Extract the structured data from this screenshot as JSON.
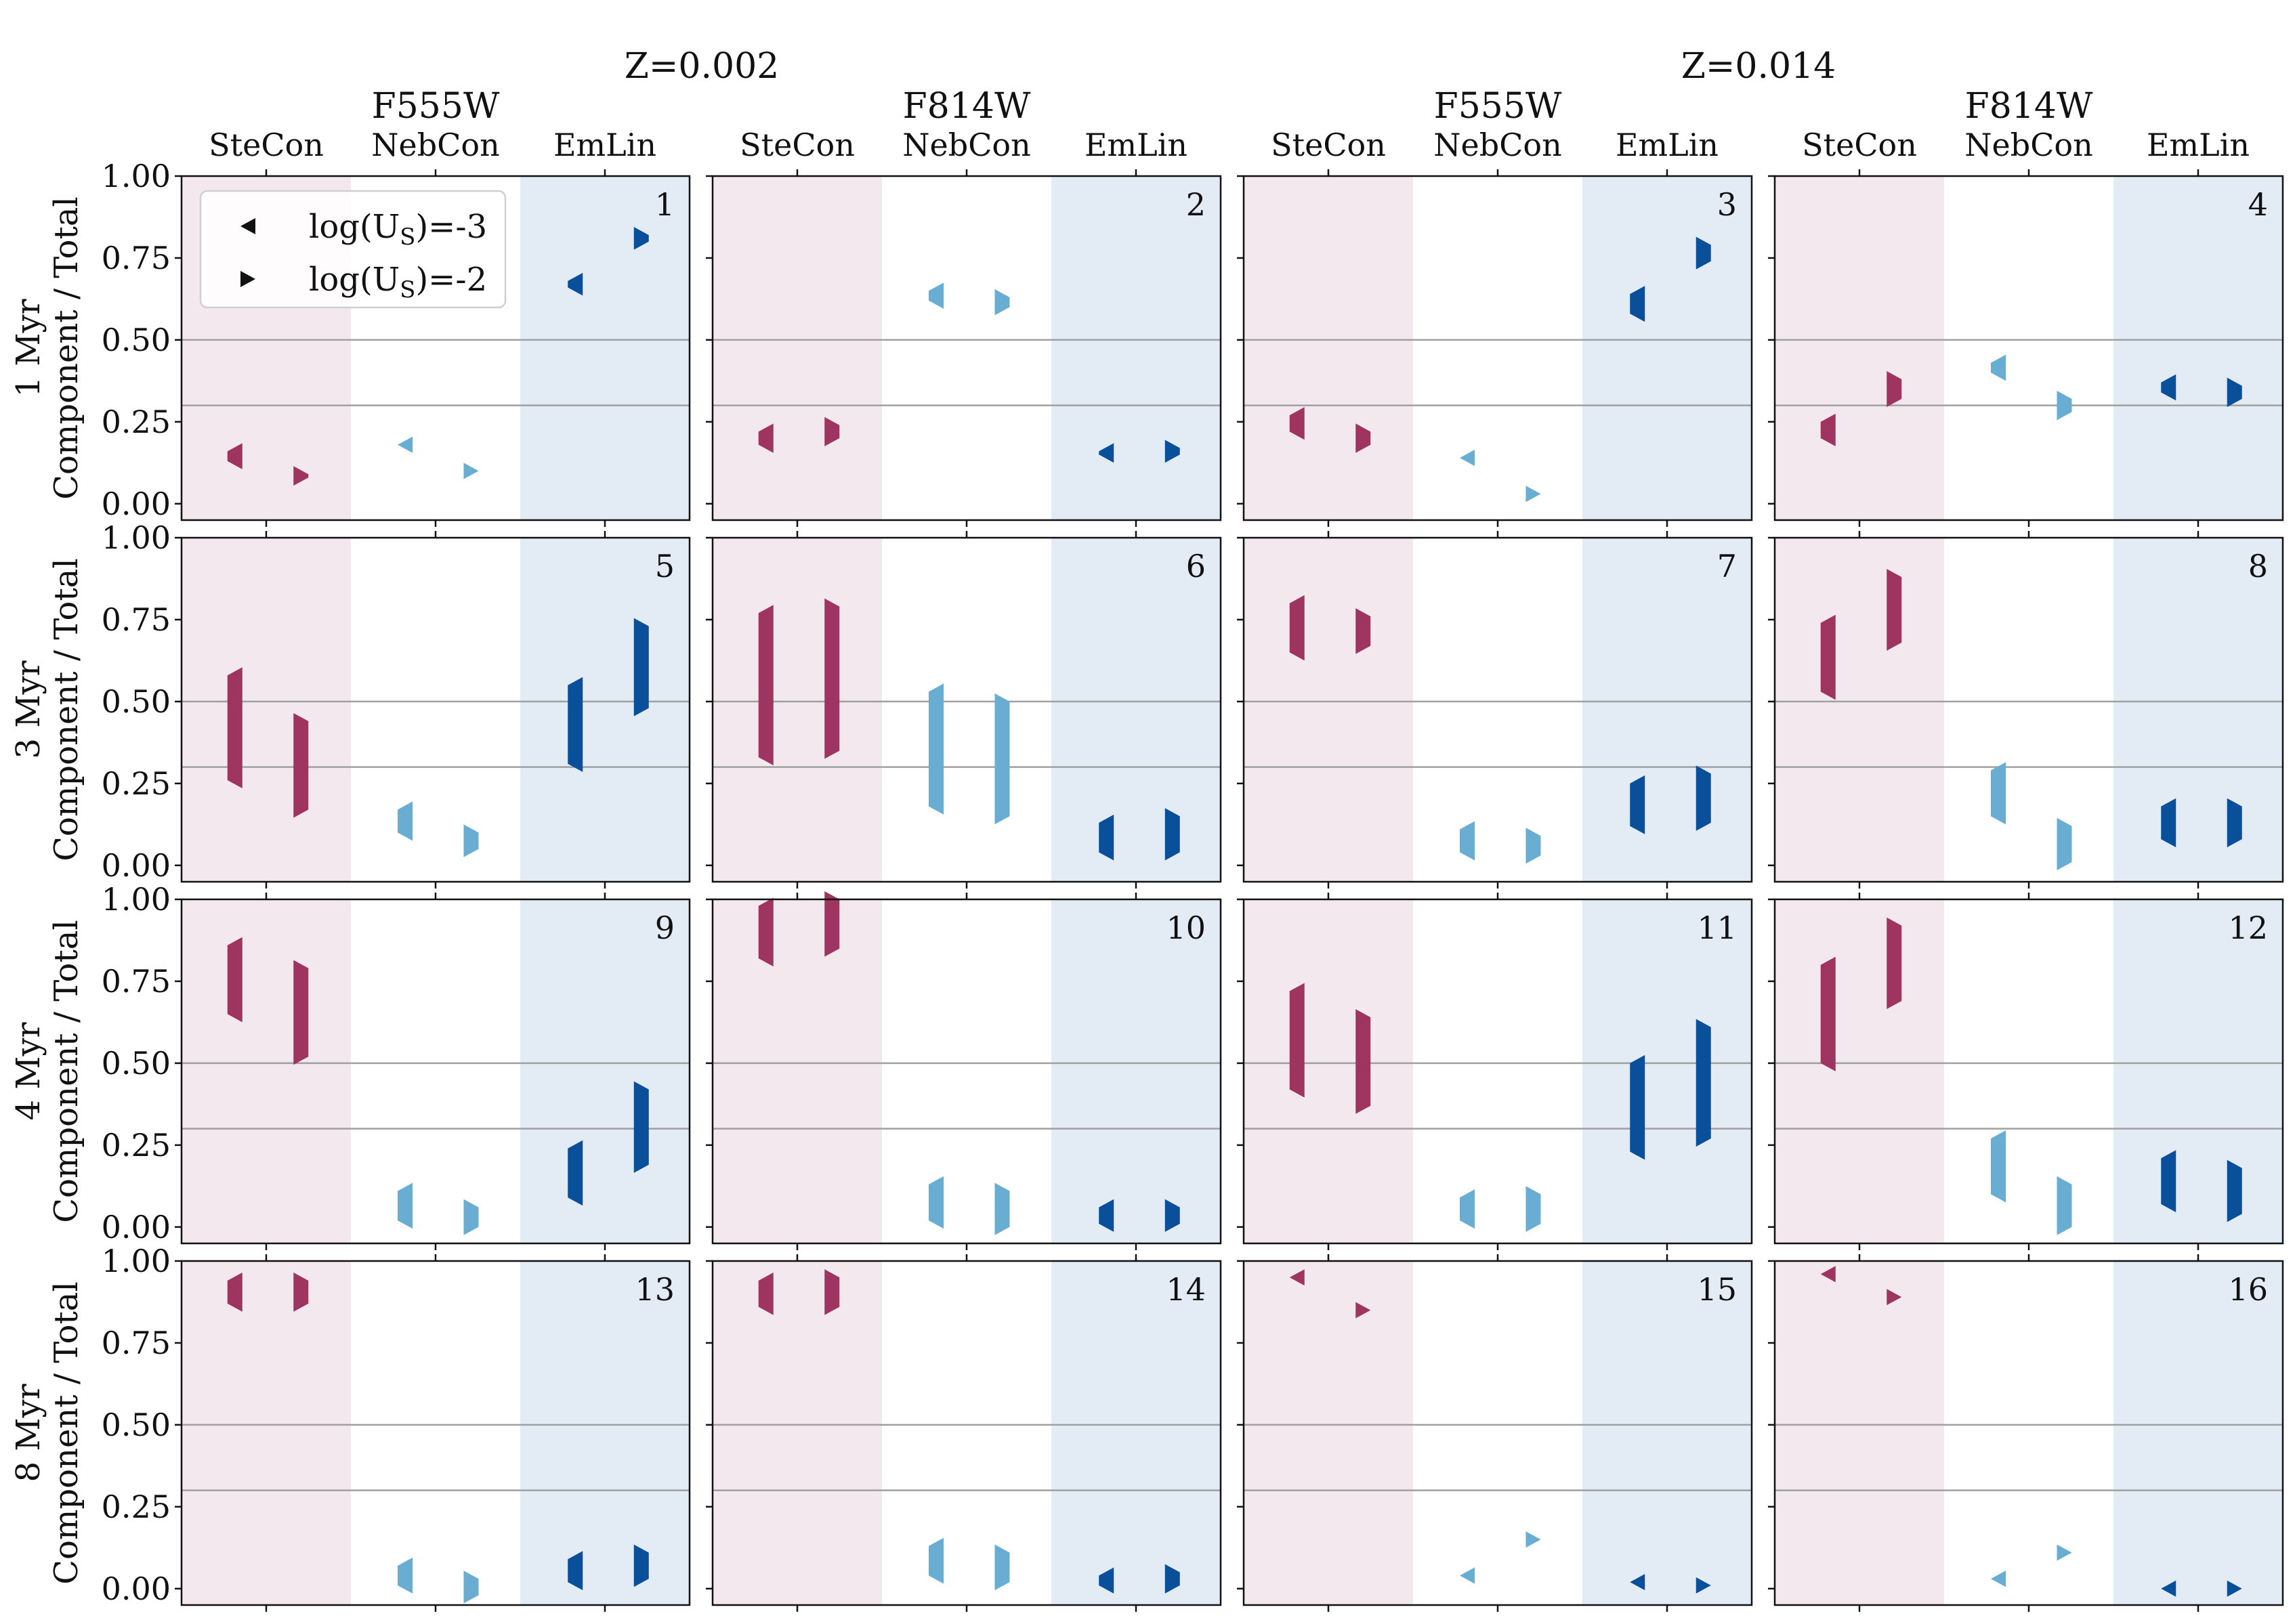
{
  "figure": {
    "metallicities": [
      "Z=0.002",
      "Z=0.014"
    ],
    "filters": [
      "F555W",
      "F814W",
      "F555W",
      "F814W"
    ],
    "components": [
      "SteCon",
      "NebCon",
      "EmLin"
    ],
    "ages": [
      "1 Myr",
      "3 Myr",
      "4 Myr",
      "8 Myr"
    ],
    "ylabel": "Component / Total",
    "yticks": [
      "1.00",
      "0.75",
      "0.50",
      "0.25",
      "0.00"
    ],
    "legend": [
      {
        "marker": "left-triangle",
        "label_main": "log(U",
        "label_sub": "S",
        "label_tail": ")=-3"
      },
      {
        "marker": "right-triangle",
        "label_main": "log(U",
        "label_sub": "S",
        "label_tail": ")=-2"
      }
    ],
    "colors": {
      "SteCon": "#9e3560",
      "NebCon": "#6aadd3",
      "EmLin": "#0a4f99",
      "SteCon_bg": "#f3e8ed",
      "EmLin_bg": "#e3ebf4",
      "hline": "#a0a0a0"
    }
  },
  "chart_data": {
    "type": "scatter",
    "title": "",
    "xlabel": "",
    "ylabel": "Component / Total",
    "ylim": [
      -0.05,
      1.0
    ],
    "reference_lines": [
      0.3,
      0.5
    ],
    "x_groups": [
      "SteCon",
      "NebCon",
      "EmLin"
    ],
    "series_markers": {
      "log(U_S)=-3": "left-triangle",
      "log(U_S)=-2": "right-triangle"
    },
    "panels": [
      {
        "id": "1",
        "age": "1 Myr",
        "Z": "Z=0.002",
        "filter": "F555W",
        "SteCon": [
          [
            0.13,
            0.16
          ],
          [
            0.08,
            0.09
          ]
        ],
        "NebCon": [
          [
            0.18,
            0.18
          ],
          [
            0.1,
            0.1
          ]
        ],
        "EmLin": [
          [
            0.66,
            0.68
          ],
          [
            0.8,
            0.82
          ]
        ]
      },
      {
        "id": "2",
        "age": "1 Myr",
        "Z": "Z=0.002",
        "filter": "F814W",
        "SteCon": [
          [
            0.18,
            0.22
          ],
          [
            0.2,
            0.24
          ]
        ],
        "NebCon": [
          [
            0.62,
            0.65
          ],
          [
            0.6,
            0.63
          ]
        ],
        "EmLin": [
          [
            0.15,
            0.16
          ],
          [
            0.15,
            0.17
          ]
        ]
      },
      {
        "id": "3",
        "age": "1 Myr",
        "Z": "Z=0.014",
        "filter": "F555W",
        "SteCon": [
          [
            0.22,
            0.27
          ],
          [
            0.18,
            0.22
          ]
        ],
        "NebCon": [
          [
            0.14,
            0.14
          ],
          [
            0.03,
            0.03
          ]
        ],
        "EmLin": [
          [
            0.58,
            0.64
          ],
          [
            0.74,
            0.79
          ]
        ]
      },
      {
        "id": "4",
        "age": "1 Myr",
        "Z": "Z=0.014",
        "filter": "F814W",
        "SteCon": [
          [
            0.2,
            0.25
          ],
          [
            0.32,
            0.38
          ]
        ],
        "NebCon": [
          [
            0.4,
            0.43
          ],
          [
            0.28,
            0.32
          ]
        ],
        "EmLin": [
          [
            0.34,
            0.37
          ],
          [
            0.32,
            0.36
          ]
        ]
      },
      {
        "id": "5",
        "age": "3 Myr",
        "Z": "Z=0.002",
        "filter": "F555W",
        "SteCon": [
          [
            0.26,
            0.58
          ],
          [
            0.17,
            0.44
          ]
        ],
        "NebCon": [
          [
            0.1,
            0.17
          ],
          [
            0.05,
            0.1
          ]
        ],
        "EmLin": [
          [
            0.31,
            0.55
          ],
          [
            0.48,
            0.73
          ]
        ]
      },
      {
        "id": "6",
        "age": "3 Myr",
        "Z": "Z=0.002",
        "filter": "F814W",
        "SteCon": [
          [
            0.33,
            0.77
          ],
          [
            0.35,
            0.79
          ]
        ],
        "NebCon": [
          [
            0.18,
            0.53
          ],
          [
            0.15,
            0.5
          ]
        ],
        "EmLin": [
          [
            0.04,
            0.13
          ],
          [
            0.04,
            0.15
          ]
        ]
      },
      {
        "id": "7",
        "age": "3 Myr",
        "Z": "Z=0.014",
        "filter": "F555W",
        "SteCon": [
          [
            0.65,
            0.8
          ],
          [
            0.67,
            0.76
          ]
        ],
        "NebCon": [
          [
            0.04,
            0.11
          ],
          [
            0.03,
            0.09
          ]
        ],
        "EmLin": [
          [
            0.12,
            0.25
          ],
          [
            0.13,
            0.28
          ]
        ]
      },
      {
        "id": "8",
        "age": "3 Myr",
        "Z": "Z=0.014",
        "filter": "F814W",
        "SteCon": [
          [
            0.53,
            0.74
          ],
          [
            0.68,
            0.88
          ]
        ],
        "NebCon": [
          [
            0.15,
            0.29
          ],
          [
            0.01,
            0.12
          ]
        ],
        "EmLin": [
          [
            0.08,
            0.18
          ],
          [
            0.08,
            0.18
          ]
        ]
      },
      {
        "id": "9",
        "age": "4 Myr",
        "Z": "Z=0.002",
        "filter": "F555W",
        "SteCon": [
          [
            0.65,
            0.86
          ],
          [
            0.52,
            0.79
          ]
        ],
        "NebCon": [
          [
            0.02,
            0.11
          ],
          [
            0.0,
            0.06
          ]
        ],
        "EmLin": [
          [
            0.09,
            0.24
          ],
          [
            0.19,
            0.42
          ]
        ]
      },
      {
        "id": "10",
        "age": "4 Myr",
        "Z": "Z=0.002",
        "filter": "F814W",
        "SteCon": [
          [
            0.82,
            0.98
          ],
          [
            0.85,
            1.0
          ]
        ],
        "NebCon": [
          [
            0.02,
            0.13
          ],
          [
            0.0,
            0.11
          ]
        ],
        "EmLin": [
          [
            0.01,
            0.06
          ],
          [
            0.01,
            0.06
          ]
        ]
      },
      {
        "id": "11",
        "age": "4 Myr",
        "Z": "Z=0.014",
        "filter": "F555W",
        "SteCon": [
          [
            0.42,
            0.72
          ],
          [
            0.37,
            0.64
          ]
        ],
        "NebCon": [
          [
            0.02,
            0.09
          ],
          [
            0.01,
            0.1
          ]
        ],
        "EmLin": [
          [
            0.23,
            0.5
          ],
          [
            0.27,
            0.61
          ]
        ]
      },
      {
        "id": "12",
        "age": "4 Myr",
        "Z": "Z=0.014",
        "filter": "F814W",
        "SteCon": [
          [
            0.5,
            0.8
          ],
          [
            0.69,
            0.92
          ]
        ],
        "NebCon": [
          [
            0.1,
            0.27
          ],
          [
            0.0,
            0.13
          ]
        ],
        "EmLin": [
          [
            0.07,
            0.21
          ],
          [
            0.04,
            0.18
          ]
        ]
      },
      {
        "id": "13",
        "age": "8 Myr",
        "Z": "Z=0.002",
        "filter": "F555W",
        "SteCon": [
          [
            0.87,
            0.94
          ],
          [
            0.87,
            0.94
          ]
        ],
        "NebCon": [
          [
            0.01,
            0.07
          ],
          [
            -0.02,
            0.03
          ]
        ],
        "EmLin": [
          [
            0.02,
            0.09
          ],
          [
            0.03,
            0.11
          ]
        ]
      },
      {
        "id": "14",
        "age": "8 Myr",
        "Z": "Z=0.002",
        "filter": "F814W",
        "SteCon": [
          [
            0.86,
            0.94
          ],
          [
            0.86,
            0.95
          ]
        ],
        "NebCon": [
          [
            0.04,
            0.13
          ],
          [
            0.02,
            0.11
          ]
        ],
        "EmLin": [
          [
            0.01,
            0.04
          ],
          [
            0.01,
            0.05
          ]
        ]
      },
      {
        "id": "15",
        "age": "8 Myr",
        "Z": "Z=0.014",
        "filter": "F555W",
        "SteCon": [
          [
            0.95,
            0.95
          ],
          [
            0.85,
            0.85
          ]
        ],
        "NebCon": [
          [
            0.04,
            0.04
          ],
          [
            0.15,
            0.15
          ]
        ],
        "EmLin": [
          [
            0.02,
            0.02
          ],
          [
            0.01,
            0.01
          ]
        ]
      },
      {
        "id": "16",
        "age": "8 Myr",
        "Z": "Z=0.014",
        "filter": "F814W",
        "SteCon": [
          [
            0.96,
            0.96
          ],
          [
            0.89,
            0.89
          ]
        ],
        "NebCon": [
          [
            0.03,
            0.03
          ],
          [
            0.11,
            0.11
          ]
        ],
        "EmLin": [
          [
            0.0,
            0.0
          ],
          [
            0.0,
            0.0
          ]
        ]
      }
    ]
  }
}
